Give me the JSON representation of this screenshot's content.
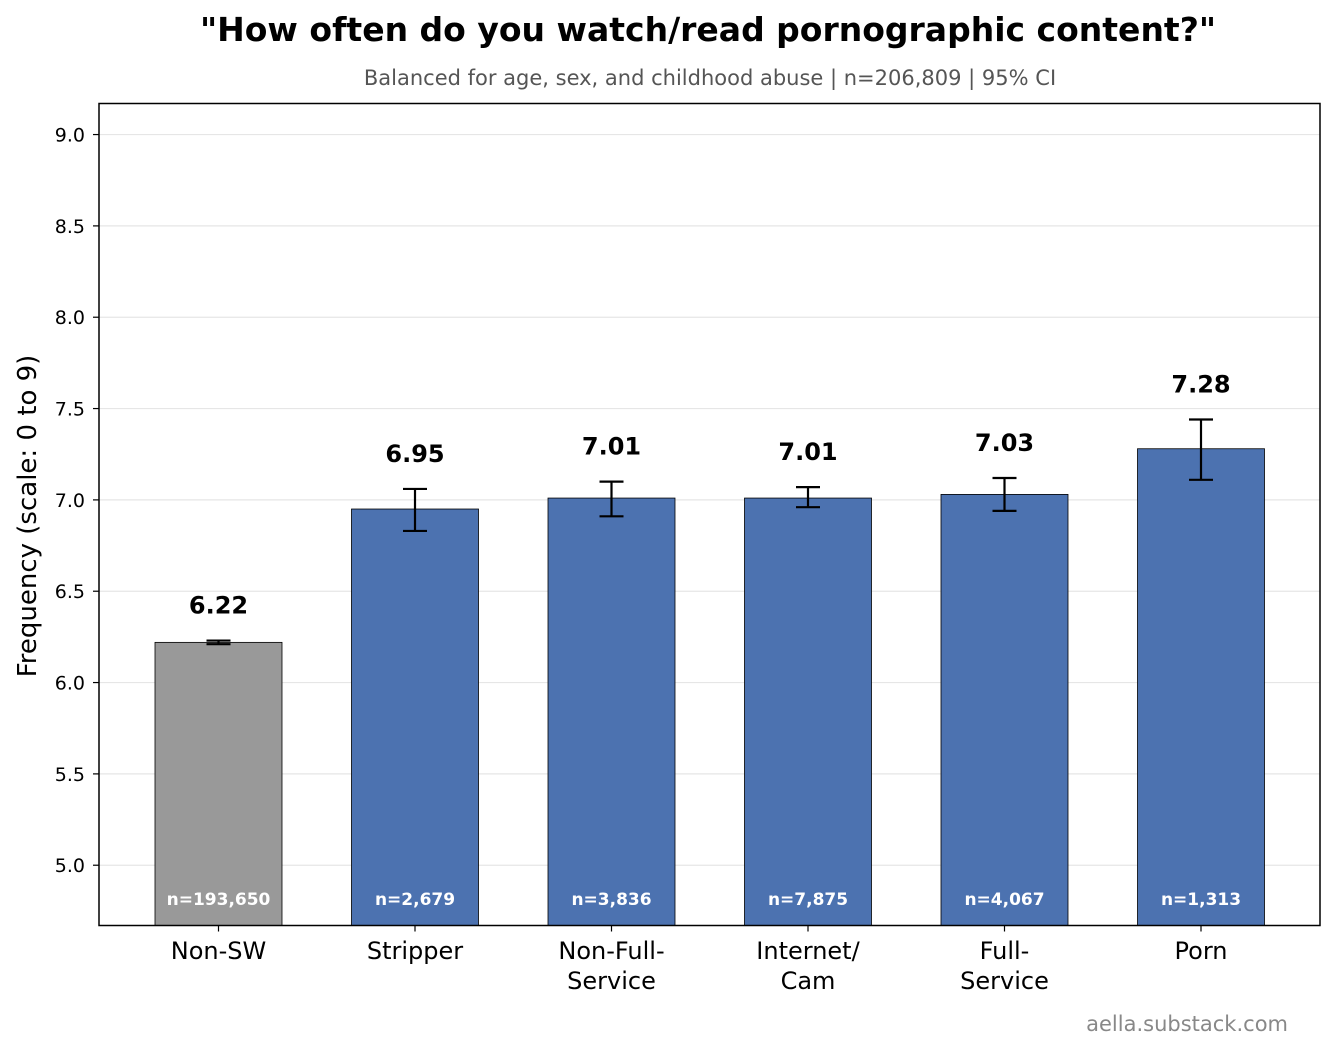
{
  "title": "\"How often do you watch/read pornographic content?\"",
  "subtitle": "Balanced for age, sex, and childhood abuse  |  n=206,809  |  95% CI",
  "watermark": "aella.substack.com",
  "colors": {
    "highlight": "#999999",
    "bar": "#4c72b0",
    "error": "#000000",
    "grid": "#e6e6e6"
  },
  "chart_data": {
    "type": "bar",
    "title": "\"How often do you watch/read pornographic content?\"",
    "subtitle": "Balanced for age, sex, and childhood abuse  |  n=206,809  |  95% CI",
    "xlabel": "",
    "ylabel": "Frequency (scale: 0 to 9)",
    "ylim": [
      4.67,
      9.17
    ],
    "yticks": [
      5.0,
      5.5,
      6.0,
      6.5,
      7.0,
      7.5,
      8.0,
      8.5,
      9.0
    ],
    "ytick_labels": [
      "5.0",
      "5.5",
      "6.0",
      "6.5",
      "7.0",
      "7.5",
      "8.0",
      "8.5",
      "9.0"
    ],
    "grid": true,
    "categories": [
      [
        "Non-SW"
      ],
      [
        "Stripper"
      ],
      [
        "Non-Full-",
        "Service"
      ],
      [
        "Internet/",
        "Cam"
      ],
      [
        "Full-",
        "Service"
      ],
      [
        "Porn"
      ]
    ],
    "values": [
      6.22,
      6.95,
      7.01,
      7.01,
      7.03,
      7.28
    ],
    "value_labels": [
      "6.22",
      "6.95",
      "7.01",
      "7.01",
      "7.03",
      "7.28"
    ],
    "ci_low": [
      6.21,
      6.83,
      6.91,
      6.96,
      6.94,
      7.11
    ],
    "ci_high": [
      6.23,
      7.06,
      7.1,
      7.07,
      7.12,
      7.44
    ],
    "n_labels": [
      "n=193,650",
      "n=2,679",
      "n=3,836",
      "n=7,875",
      "n=4,067",
      "n=1,313"
    ],
    "bar_colors": [
      "#999999",
      "#4c72b0",
      "#4c72b0",
      "#4c72b0",
      "#4c72b0",
      "#4c72b0"
    ]
  }
}
